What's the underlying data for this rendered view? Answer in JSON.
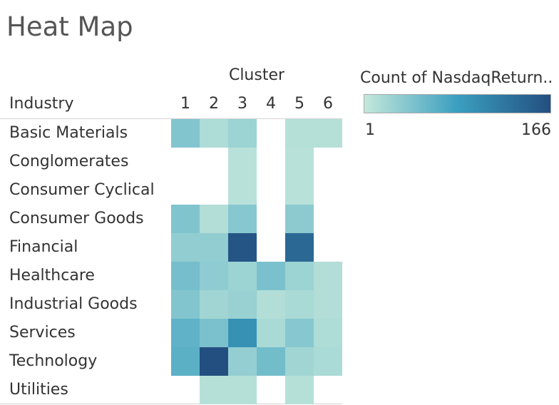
{
  "chart_data": {
    "type": "heatmap",
    "title": "Heat Map",
    "column_header": "Cluster",
    "row_header": "Industry",
    "columns": [
      "1",
      "2",
      "3",
      "4",
      "5",
      "6"
    ],
    "rows": [
      "Basic Materials",
      "Conglomerates",
      "Consumer Cyclical",
      "Consumer Goods",
      "Financial",
      "Healthcare",
      "Industrial Goods",
      "Services",
      "Technology",
      "Utilities"
    ],
    "values": [
      [
        40,
        14,
        25,
        null,
        10,
        10
      ],
      [
        null,
        null,
        8,
        null,
        8,
        null
      ],
      [
        null,
        null,
        8,
        null,
        8,
        null
      ],
      [
        42,
        12,
        38,
        null,
        35,
        null
      ],
      [
        32,
        32,
        160,
        null,
        140,
        null
      ],
      [
        48,
        33,
        25,
        45,
        25,
        12
      ],
      [
        40,
        22,
        27,
        12,
        17,
        12
      ],
      [
        62,
        45,
        98,
        17,
        38,
        14
      ],
      [
        64,
        166,
        30,
        50,
        22,
        16
      ],
      [
        null,
        10,
        10,
        null,
        10,
        null
      ]
    ],
    "color_scale": {
      "title": "Count of NasdaqReturn..",
      "min": 1,
      "max": 166,
      "min_label": "1",
      "max_label": "166",
      "min_color": "#c4e8db",
      "mid_color": "#3b9fc0",
      "max_color": "#234f80"
    }
  }
}
